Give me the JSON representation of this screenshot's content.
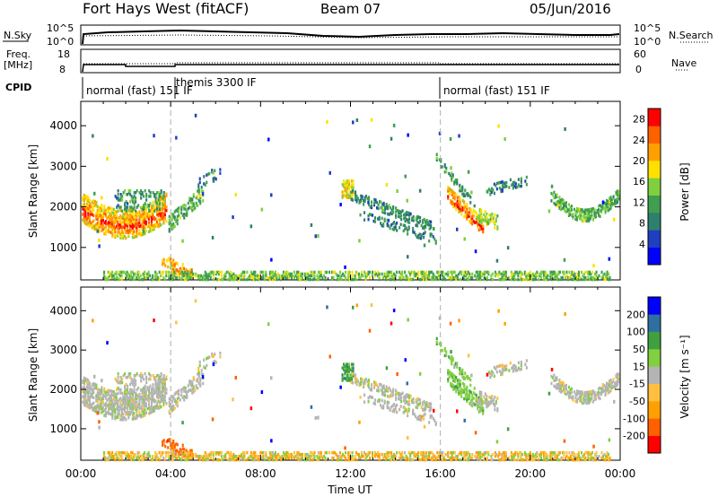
{
  "header": {
    "station": "Fort Hays West (fitACF)",
    "beam": "Beam 07",
    "date": "05/Jun/2016"
  },
  "strips": {
    "nsky_label": "N.Sky",
    "nsky_top": "10^5",
    "nsky_bottom": "10^0",
    "nsearch_label": "N.Search",
    "nsearch_top": "10^5",
    "nsearch_bottom": "10^0",
    "freq_label": "Freq.",
    "freq_unit": "[MHz]",
    "freq_top": "18",
    "freq_bottom": "8",
    "nave_label": "Nave",
    "nave_top": "60",
    "nave_bottom": "0",
    "cpid_label": "CPID",
    "cpid_segments": [
      "normal (fast) 151 IF",
      "themis 3300 IF",
      "normal (fast) 151 IF"
    ]
  },
  "colors": {
    "power": [
      "#0000ff",
      "#1f3fbf",
      "#2f7f6f",
      "#3f9f4f",
      "#7fcf3f",
      "#ffe000",
      "#ffa000",
      "#ff6000",
      "#ff0000"
    ],
    "velocity": [
      "#ff0000",
      "#ff6000",
      "#ffa000",
      "#ffc040",
      "#b4b4b4",
      "#80d040",
      "#3fa040",
      "#2f6f9f",
      "#0000ff"
    ],
    "ground_scatter": "#b4b4b4"
  },
  "chart_data": [
    {
      "type": "heatmap",
      "name": "power",
      "ylabel": "Slant Range [km]",
      "y_ticks": [
        "1000",
        "2000",
        "3000",
        "4000"
      ],
      "ylim": [
        200,
        4600
      ],
      "xlim": [
        0,
        24
      ],
      "colorbar_label": "Power [dB]",
      "colorbar_ticks": [
        "4",
        "8",
        "12",
        "16",
        "20",
        "24",
        "28"
      ],
      "colorbar_range": [
        0,
        30
      ]
    },
    {
      "type": "heatmap",
      "name": "velocity",
      "ylabel": "Slant Range [km]",
      "y_ticks": [
        "1000",
        "2000",
        "3000",
        "4000"
      ],
      "ylim": [
        200,
        4600
      ],
      "xlim": [
        0,
        24
      ],
      "xlabel": "Time UT",
      "x_ticks": [
        "00:00",
        "04:00",
        "08:00",
        "12:00",
        "16:00",
        "20:00",
        "00:00"
      ],
      "colorbar_label": "Velocity [m s⁻¹]",
      "colorbar_ticks": [
        "200",
        "100",
        "50",
        "15",
        "-15",
        "-50",
        "-100",
        "-200"
      ]
    }
  ]
}
